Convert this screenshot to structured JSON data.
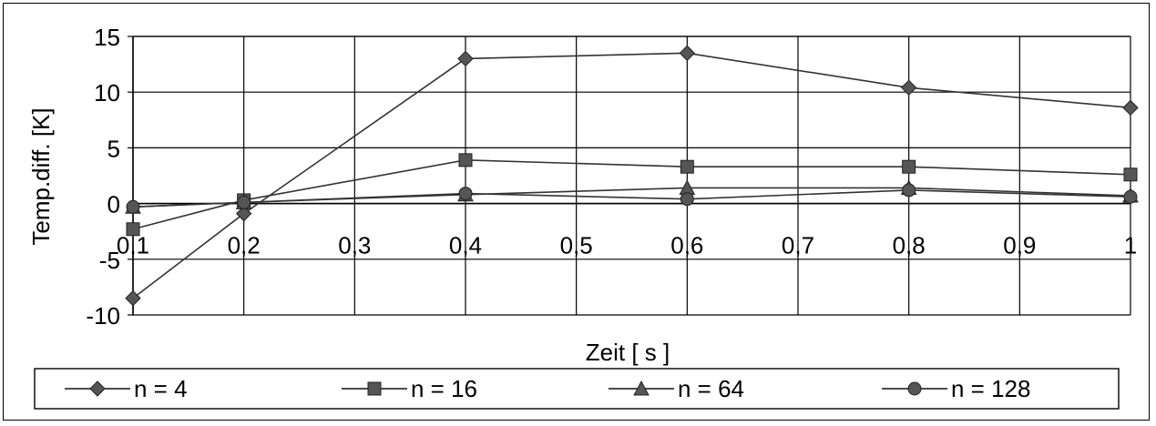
{
  "chart_data": {
    "type": "line",
    "title": "",
    "xlabel": "Zeit [ s ]",
    "ylabel": "Temp.diff. [K]",
    "x": [
      0.1,
      0.2,
      0.4,
      0.6,
      0.8,
      1.0
    ],
    "x_tick_labels": [
      "0,1",
      "0,2",
      "0,3",
      "0,4",
      "0,5",
      "0,6",
      "0,7",
      "0,8",
      "0,9",
      "1"
    ],
    "y_tick_labels": [
      "15",
      "10",
      "5",
      "0",
      "-5",
      "-10"
    ],
    "y_ticks": [
      15,
      10,
      5,
      0,
      -5,
      -10
    ],
    "ylim": [
      -10,
      15
    ],
    "grid": true,
    "legend_position": "bottom",
    "series": [
      {
        "name": "n = 4",
        "marker": "diamond",
        "values": [
          -8.5,
          -0.9,
          13.0,
          13.5,
          10.4,
          8.6
        ]
      },
      {
        "name": "n = 16",
        "marker": "square",
        "values": [
          -2.3,
          0.3,
          3.9,
          3.3,
          3.3,
          2.6
        ]
      },
      {
        "name": "n = 64",
        "marker": "triangle",
        "values": [
          -0.3,
          0.1,
          0.8,
          1.4,
          1.4,
          0.7
        ]
      },
      {
        "name": "n = 128",
        "marker": "circle",
        "values": [
          -0.3,
          0.1,
          0.9,
          0.4,
          1.2,
          0.6
        ]
      }
    ]
  }
}
